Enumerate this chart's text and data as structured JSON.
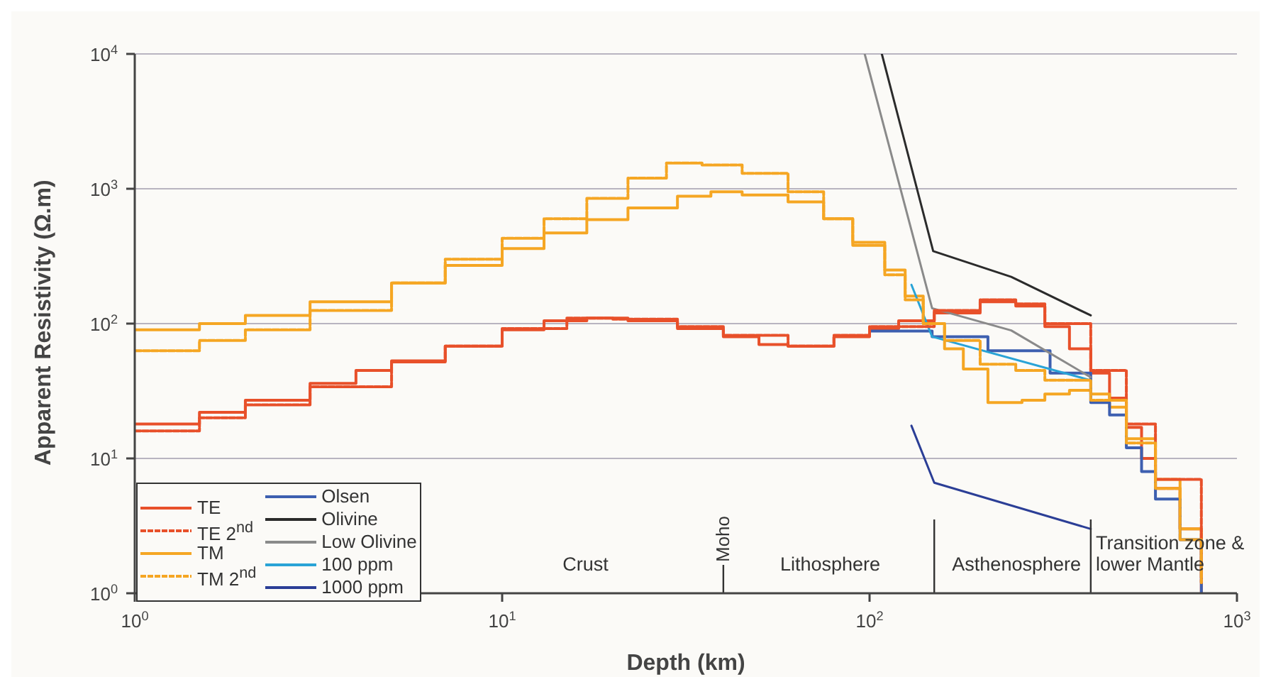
{
  "chart_data": {
    "type": "line",
    "xlabel": "Depth (km)",
    "ylabel": "Apparent Resistivity (Ω.m)",
    "log": "xy",
    "grid": "y",
    "legend": "bottom left",
    "marker": "none",
    "xlim": [
      1,
      1000
    ],
    "ylim": [
      1,
      10000
    ],
    "xticks": [
      {
        "value": 1,
        "label": "10$^{0}$"
      },
      {
        "value": 10,
        "label": "10$^{1}$"
      },
      {
        "value": 100,
        "label": "10$^{2}$"
      },
      {
        "value": 1000,
        "label": "10$^{3}$"
      }
    ],
    "yticks": [
      {
        "value": 1,
        "label": "10$^{0}$"
      },
      {
        "value": 10,
        "label": "10$^{1}$"
      },
      {
        "value": 100,
        "label": "10$^{2}$"
      },
      {
        "value": 1000,
        "label": "10$^{3}$"
      },
      {
        "value": 10000,
        "label": "10$^{4}$"
      }
    ],
    "series": [
      {
        "name": "TE",
        "type": "step",
        "color": "#e8502a",
        "line_style": "solid",
        "x": [
          1,
          1.5,
          2,
          3,
          4,
          5,
          7,
          10,
          13,
          17,
          22,
          30,
          40,
          50,
          60,
          80,
          100,
          120,
          150,
          200,
          250,
          300,
          350,
          400,
          450,
          500,
          550,
          600,
          700,
          800
        ],
        "values": [
          18,
          22,
          27,
          36,
          45,
          53,
          68,
          90,
          105,
          110,
          105,
          92,
          80,
          70,
          68,
          80,
          92,
          105,
          120,
          145,
          135,
          95,
          65,
          43,
          28,
          17,
          10,
          6,
          3,
          1
        ]
      },
      {
        "name": "TE 2$^{nd}$",
        "type": "step",
        "color": "#e8502a",
        "line_style": "dashed",
        "x": [
          1,
          1.5,
          2,
          3,
          5,
          7,
          10,
          15,
          20,
          30,
          40,
          60,
          80,
          100,
          150,
          200,
          250,
          300,
          400,
          500,
          600,
          800
        ],
        "values": [
          16,
          20,
          25,
          34,
          52,
          68,
          92,
          110,
          108,
          95,
          82,
          68,
          82,
          95,
          125,
          150,
          140,
          100,
          45,
          18,
          7,
          1.2
        ]
      },
      {
        "name": "TM",
        "type": "step",
        "color": "#f5a623",
        "line_style": "solid",
        "x": [
          1,
          1.5,
          2,
          3,
          5,
          7,
          10,
          13,
          17,
          22,
          30,
          37,
          45,
          60,
          75,
          90,
          110,
          125,
          140,
          160,
          180,
          210,
          260,
          300,
          350,
          400,
          450,
          500,
          600,
          700,
          800
        ],
        "values": [
          90,
          100,
          115,
          145,
          200,
          270,
          360,
          470,
          590,
          720,
          880,
          950,
          900,
          800,
          600,
          400,
          250,
          160,
          100,
          65,
          46,
          26,
          27,
          30,
          32,
          30,
          24,
          14,
          7,
          3,
          1.5
        ]
      },
      {
        "name": "TM 2$^{nd}$",
        "type": "step",
        "color": "#f5a623",
        "line_style": "dashed",
        "x": [
          1,
          1.5,
          2,
          3,
          5,
          7,
          10,
          13,
          17,
          22,
          28,
          35,
          45,
          60,
          75,
          90,
          110,
          125,
          140,
          160,
          200,
          250,
          300,
          400,
          500,
          600,
          700,
          800
        ],
        "values": [
          63,
          75,
          90,
          125,
          200,
          300,
          430,
          600,
          850,
          1200,
          1550,
          1500,
          1300,
          950,
          600,
          380,
          230,
          150,
          100,
          75,
          50,
          45,
          38,
          27,
          13,
          6,
          2.5,
          1.2
        ]
      },
      {
        "name": "Olsen",
        "type": "step",
        "color": "#3d5fb0",
        "line_style": "solid",
        "x": [
          100,
          148,
          210,
          310,
          400,
          450,
          500,
          550,
          600,
          700,
          800
        ],
        "values": [
          88,
          80,
          63,
          43,
          26,
          21,
          12,
          8,
          5,
          2.5,
          1
        ]
      },
      {
        "name": "Olivine",
        "type": "line",
        "color": "#2b2b2b",
        "line_style": "solid",
        "x": [
          108,
          149,
          243,
          400
        ],
        "values": [
          10000,
          345,
          222,
          115
        ]
      },
      {
        "name": "Low Olivine",
        "type": "line",
        "color": "#8a8a8a",
        "line_style": "solid",
        "x": [
          97,
          148,
          243,
          400
        ],
        "values": [
          10000,
          130,
          89,
          40
        ]
      },
      {
        "name": "100 ppm",
        "type": "line",
        "color": "#29a3d6",
        "line_style": "solid",
        "x": [
          130,
          148,
          400
        ],
        "values": [
          194,
          80,
          38
        ]
      },
      {
        "name": "1000 ppm",
        "type": "line",
        "color": "#2b3e96",
        "line_style": "solid",
        "x": [
          130,
          150,
          400
        ],
        "values": [
          17.5,
          6.6,
          3
        ]
      }
    ],
    "ref_lines": [
      {
        "axis": "x",
        "value": 40,
        "label": "Moho",
        "color": "#333333"
      },
      {
        "axis": "x",
        "value": 150,
        "label": null,
        "color": "#333333"
      },
      {
        "axis": "x",
        "value": 400,
        "label": null,
        "color": "#333333"
      }
    ],
    "annotations": [
      "Crust",
      "Lithosphere",
      "Asthenosphere",
      "Transition zone & lower Mantle"
    ]
  }
}
